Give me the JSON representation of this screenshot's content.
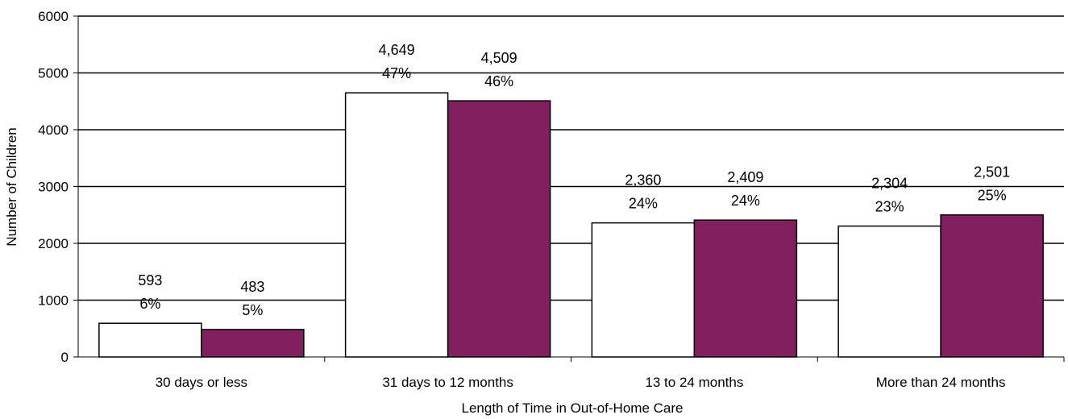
{
  "chart_data": {
    "type": "bar",
    "title": "",
    "xlabel": "Length of Time in Out-of-Home Care",
    "ylabel": "Number of Children",
    "ylim": [
      0,
      6000
    ],
    "yticks": [
      "0",
      "1000",
      "2000",
      "3000",
      "4000",
      "5000",
      "6000"
    ],
    "grid": "horizontal",
    "legend": "none",
    "categories": [
      "30 days or less",
      "31 days to 12 months",
      "13 to 24 months",
      "More than 24 months"
    ],
    "series": [
      {
        "color": "#ffffff",
        "values": [
          593,
          4649,
          2360,
          2304
        ],
        "value_labels": [
          "593",
          "4,649",
          "2,360",
          "2,304"
        ],
        "pct_labels": [
          "6%",
          "47%",
          "24%",
          "23%"
        ]
      },
      {
        "color": "#80205e",
        "values": [
          483,
          4509,
          2409,
          2501
        ],
        "value_labels": [
          "483",
          "4,509",
          "2,409",
          "2,501"
        ],
        "pct_labels": [
          "5%",
          "46%",
          "24%",
          "25%"
        ]
      }
    ]
  }
}
